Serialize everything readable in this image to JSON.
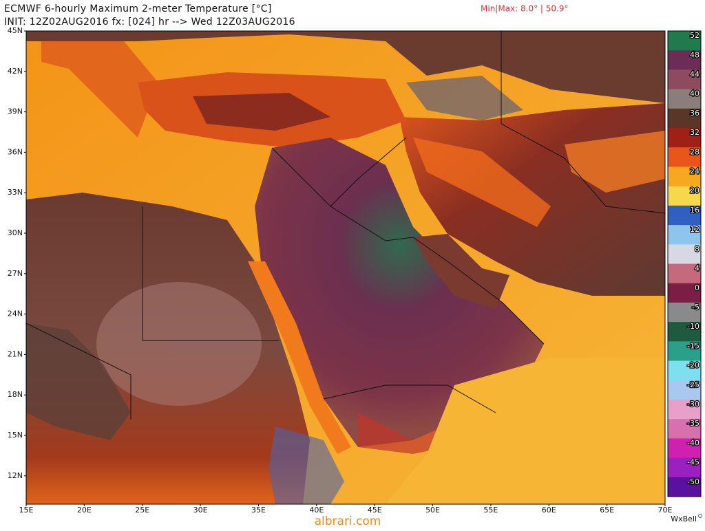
{
  "header": {
    "title": "ECMWF 6-hourly Maximum 2-meter Temperature [°C]",
    "init": "INIT: 12Z02AUG2016 fx: [024] hr --> Wed 12Z03AUG2016",
    "minmax": "Min|Max: 8.0° | 50.9°"
  },
  "map": {
    "lat_labels": [
      "45N",
      "42N",
      "39N",
      "36N",
      "33N",
      "30N",
      "27N",
      "24N",
      "21N",
      "18N",
      "15N",
      "12N"
    ],
    "lon_labels": [
      "15E",
      "20E",
      "25E",
      "30E",
      "35E",
      "40E",
      "45E",
      "50E",
      "55E",
      "60E",
      "65E",
      "70E"
    ]
  },
  "colorbar": {
    "labels": [
      52,
      48,
      44,
      40,
      36,
      32,
      28,
      24,
      20,
      16,
      12,
      8,
      4,
      0,
      -5,
      -10,
      -15,
      -20,
      -25,
      -30,
      -35,
      -40,
      -45,
      -50
    ]
  },
  "footer": {
    "brand": "WxBell",
    "watermark": "albrari.com"
  }
}
